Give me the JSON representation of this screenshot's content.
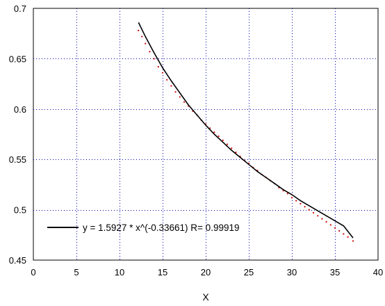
{
  "chart_data": {
    "type": "line",
    "title": "",
    "xlabel": "X",
    "ylabel": "",
    "xlim": [
      0,
      40
    ],
    "ylim": [
      0.45,
      0.7
    ],
    "x_ticks": [
      0,
      5,
      10,
      15,
      20,
      25,
      30,
      35,
      40
    ],
    "y_ticks": [
      0.45,
      0.5,
      0.55,
      0.6,
      0.65,
      0.7
    ],
    "x_tick_labels": [
      "0",
      "5",
      "10",
      "15",
      "20",
      "25",
      "30",
      "35",
      "40"
    ],
    "y_tick_labels": [
      "0.45",
      "0.5",
      "0.55",
      "0.6",
      "0.65",
      "0.7"
    ],
    "grid": true,
    "legend_position": "bottom-left",
    "series": [
      {
        "name": "y = 1.5927 * x^(-0.33661) R= 0.99919",
        "style": "solid",
        "color": "#000000",
        "x": [
          12.2,
          13,
          14,
          15,
          16,
          17,
          18,
          19,
          20,
          21,
          22,
          23,
          24,
          25,
          26,
          27,
          28,
          29,
          30,
          31,
          32,
          33,
          34,
          35,
          36,
          37.1
        ],
        "y": [
          0.686,
          0.672,
          0.656,
          0.641,
          0.628,
          0.616,
          0.604,
          0.594,
          0.584,
          0.575,
          0.567,
          0.559,
          0.552,
          0.545,
          0.538,
          0.532,
          0.526,
          0.52,
          0.515,
          0.509,
          0.504,
          0.499,
          0.494,
          0.489,
          0.484,
          0.472
        ]
      },
      {
        "style": "dotted-points",
        "color": "#d00000",
        "x": [
          12.2,
          12.6,
          13,
          13.5,
          14,
          14.5,
          15,
          15.5,
          16,
          16.5,
          17,
          17.5,
          18,
          18.5,
          19,
          19.5,
          20,
          20.5,
          21,
          21.5,
          22,
          22.5,
          23,
          23.5,
          24,
          24.5,
          25,
          25.5,
          26,
          26.5,
          27,
          27.5,
          28,
          28.5,
          29,
          29.5,
          30,
          30.5,
          31,
          31.5,
          32,
          32.5,
          33,
          33.5,
          34,
          34.5,
          35,
          35.5,
          36,
          36.5,
          37.1
        ],
        "y": [
          0.678,
          0.672,
          0.665,
          0.657,
          0.65,
          0.642,
          0.636,
          0.629,
          0.623,
          0.617,
          0.612,
          0.607,
          0.603,
          0.598,
          0.594,
          0.589,
          0.585,
          0.581,
          0.577,
          0.573,
          0.569,
          0.565,
          0.561,
          0.557,
          0.553,
          0.549,
          0.546,
          0.542,
          0.539,
          0.535,
          0.532,
          0.529,
          0.526,
          0.522,
          0.519,
          0.516,
          0.512,
          0.509,
          0.506,
          0.503,
          0.5,
          0.497,
          0.494,
          0.491,
          0.488,
          0.485,
          0.482,
          0.479,
          0.476,
          0.473,
          0.469
        ]
      }
    ]
  }
}
